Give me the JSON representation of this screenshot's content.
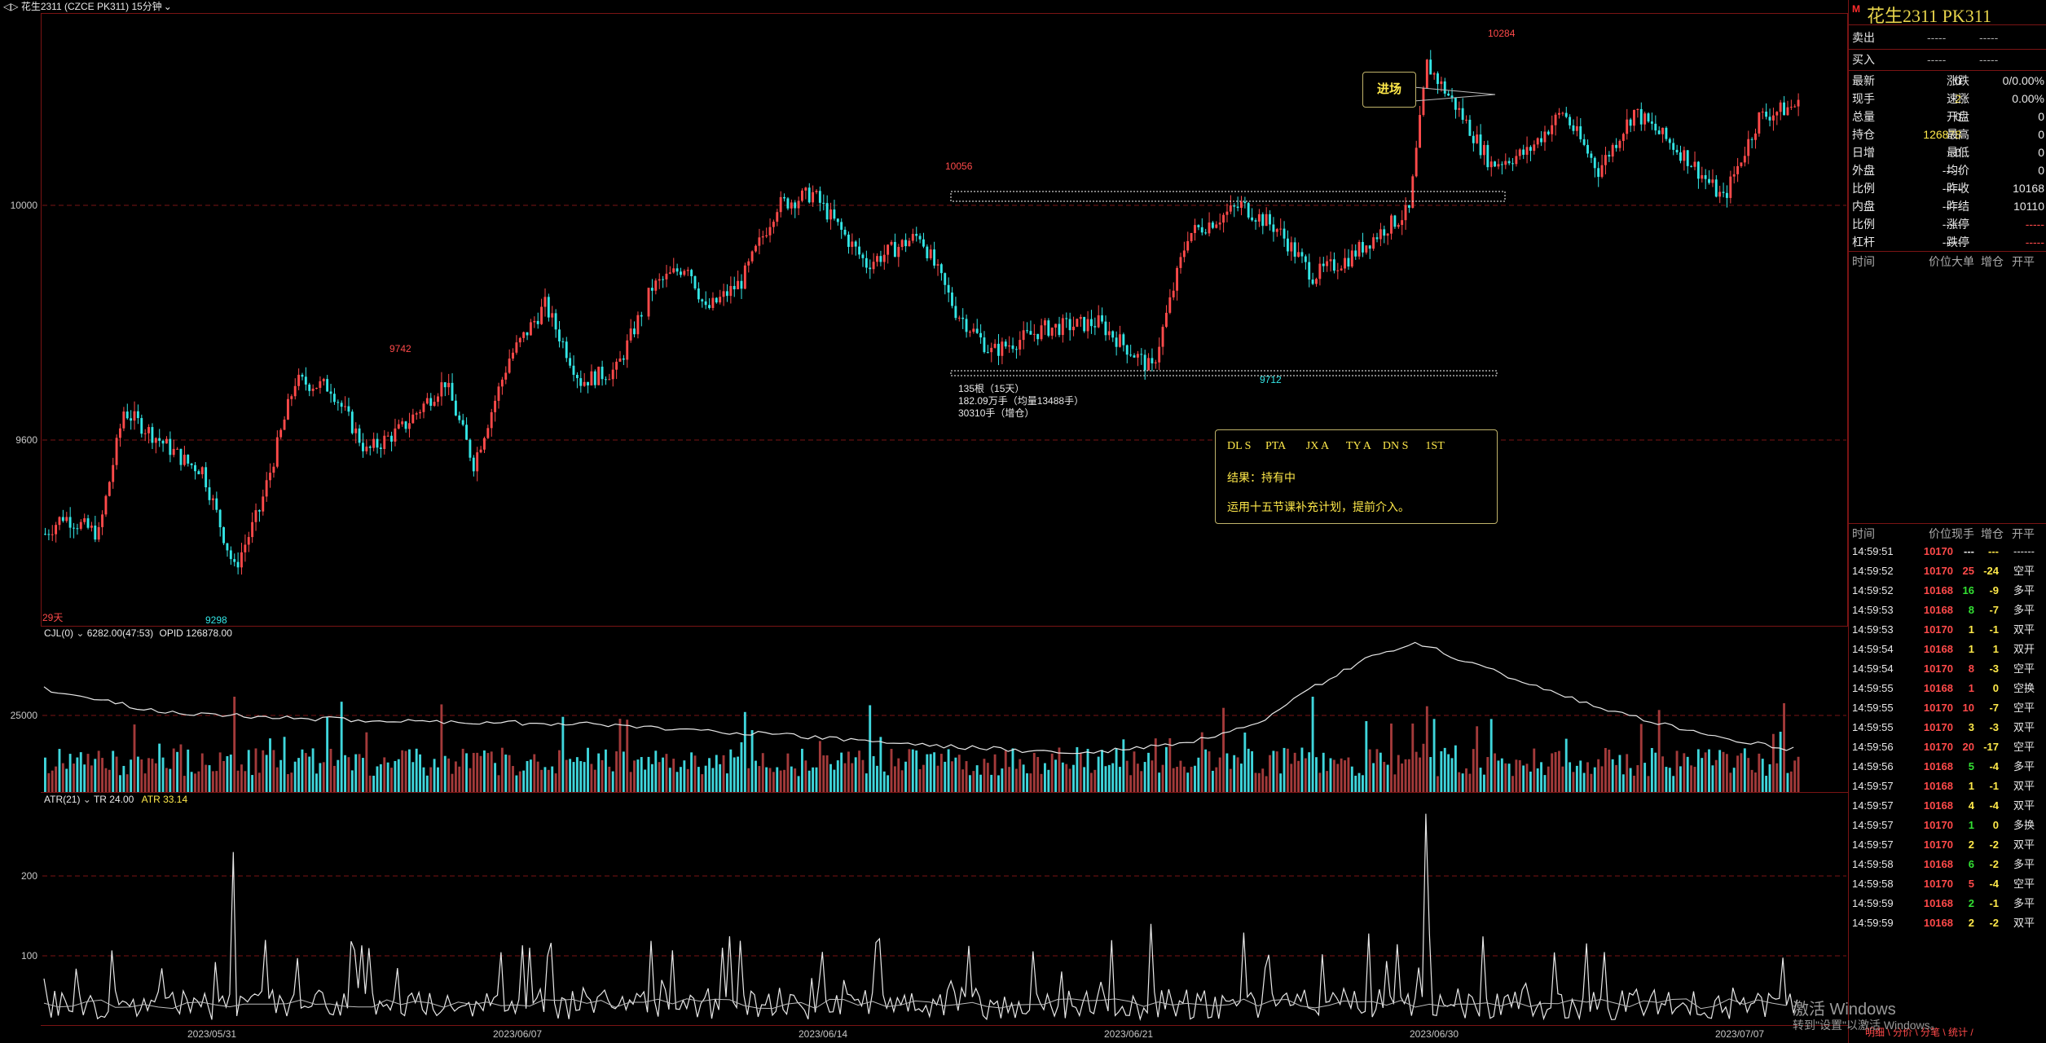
{
  "toolbar": {
    "title": "花生2311 (CZCE PK311)",
    "period": "15分钟"
  },
  "main_chart": {
    "y_ticks": [
      "10000",
      "9600"
    ],
    "high_label": "10284",
    "mid_high_label": "10056",
    "left_high_label": "9742",
    "low_label": "9298",
    "low2_label": "9712",
    "days_label": "29天",
    "entry_label": "进场",
    "range_info": [
      "135根（15天）",
      "182.09万手（均量13488手）",
      "30310手（增仓）"
    ],
    "note": {
      "codes": [
        "DL S",
        "PTA",
        "JX A",
        "TY A",
        "DN S",
        "1ST"
      ],
      "result": "结果：持有中",
      "plan": "运用十五节课补充计划，提前介入。"
    }
  },
  "volume_panel": {
    "label": "CJL(0)",
    "value": "6282.00(47:53)",
    "opid": "OPID 126878.00",
    "y_tick": "25000"
  },
  "atr_panel": {
    "label": "ATR(21)",
    "tr": "TR 24.00",
    "atr": "ATR 33.14",
    "y_ticks": [
      "200",
      "100"
    ]
  },
  "x_dates": [
    "2023/05/31",
    "2023/06/07",
    "2023/06/14",
    "2023/06/21",
    "2023/06/30",
    "2023/07/07"
  ],
  "sidebar": {
    "marker": "M",
    "title": "花生2311 PK311",
    "sell_label": "卖出",
    "sell_price": "-----",
    "sell_vol": "-----",
    "buy_label": "买入",
    "buy_price": "-----",
    "buy_vol": "-----",
    "stats": [
      [
        "最新",
        "0",
        "涨跌",
        "0/0.00%"
      ],
      [
        "现手",
        "2",
        "速涨",
        "0.00%"
      ],
      [
        "总量",
        "0",
        "开盘",
        "0"
      ],
      [
        "持仓",
        "126878",
        "最高",
        "0"
      ],
      [
        "日增",
        "0",
        "最低",
        "0"
      ],
      [
        "外盘",
        "-----",
        "均价",
        "0"
      ],
      [
        "比例",
        "-----",
        "昨收",
        "10168"
      ],
      [
        "内盘",
        "-----",
        "昨结",
        "10110"
      ],
      [
        "比例",
        "-----",
        "涨停",
        "-----"
      ],
      [
        "杠杆",
        "-----",
        "跌停",
        "-----"
      ]
    ],
    "big_header": [
      "时间",
      "价位",
      "大单",
      "增仓",
      "开平"
    ],
    "tick_header": [
      "时间",
      "价位",
      "现手",
      "增仓",
      "开平"
    ],
    "ticks": [
      [
        "14:59:51",
        "10170",
        "---",
        "---",
        "------"
      ],
      [
        "14:59:52",
        "10170",
        "25",
        "-24",
        "空平"
      ],
      [
        "14:59:52",
        "10168",
        "16",
        "-9",
        "多平"
      ],
      [
        "14:59:53",
        "10168",
        "8",
        "-7",
        "多平"
      ],
      [
        "14:59:53",
        "10170",
        "1",
        "-1",
        "双平"
      ],
      [
        "14:59:54",
        "10168",
        "1",
        "1",
        "双开"
      ],
      [
        "14:59:54",
        "10170",
        "8",
        "-3",
        "空平"
      ],
      [
        "14:59:55",
        "10168",
        "1",
        "0",
        "空换"
      ],
      [
        "14:59:55",
        "10170",
        "10",
        "-7",
        "空平"
      ],
      [
        "14:59:55",
        "10170",
        "3",
        "-3",
        "双平"
      ],
      [
        "14:59:56",
        "10170",
        "20",
        "-17",
        "空平"
      ],
      [
        "14:59:56",
        "10168",
        "5",
        "-4",
        "多平"
      ],
      [
        "14:59:57",
        "10168",
        "1",
        "-1",
        "双平"
      ],
      [
        "14:59:57",
        "10168",
        "4",
        "-4",
        "双平"
      ],
      [
        "14:59:57",
        "10170",
        "1",
        "0",
        "多换"
      ],
      [
        "14:59:57",
        "10170",
        "2",
        "-2",
        "双平"
      ],
      [
        "14:59:58",
        "10168",
        "6",
        "-2",
        "多平"
      ],
      [
        "14:59:58",
        "10170",
        "5",
        "-4",
        "空平"
      ],
      [
        "14:59:59",
        "10168",
        "2",
        "-1",
        "多平"
      ],
      [
        "14:59:59",
        "10168",
        "2",
        "-2",
        "双平"
      ]
    ],
    "footer": "明细 \\ 分价 \\ 分笔 \\ 统计 /"
  },
  "watermark": {
    "line1": "激活 Windows",
    "line2": "转到\"设置\"以激活 Windows。"
  },
  "colors": {
    "up": "#ff4a4a",
    "down": "#33e6e6",
    "grid": "#7a1414",
    "accent": "#ffe94a"
  }
}
